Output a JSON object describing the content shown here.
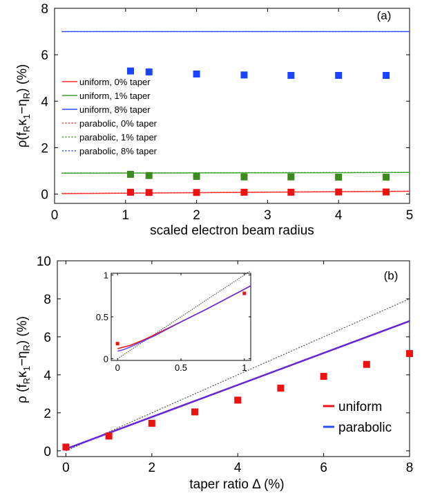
{
  "chart_data": [
    {
      "panel_label": "(a)",
      "type": "scatter",
      "xlabel": "scaled electron beam radius",
      "ylabel_parts": {
        "rho": "ρ",
        "open": "(f",
        "sub_R1": "R",
        "kappa": "κ",
        "sub_1": "1",
        "minus_eta": "−η",
        "sub_R2": "R",
        "close": ")",
        "unit": " (%)"
      },
      "xlim": [
        0,
        5
      ],
      "ylim": [
        -0.4,
        8
      ],
      "xticks": [
        0,
        1,
        2,
        3,
        4,
        5
      ],
      "yticks": [
        0,
        2,
        4,
        6,
        8
      ],
      "grid": false,
      "legend_placement": "left",
      "legend": [
        {
          "label": "uniform, 0% taper",
          "style": "solid",
          "color": "#ff2a2a"
        },
        {
          "label": "uniform, 1% taper",
          "style": "solid",
          "color": "#3aa12a"
        },
        {
          "label": "uniform, 8% taper",
          "style": "solid",
          "color": "#2a4cff"
        },
        {
          "label": "parabolic, 0% taper",
          "style": "dotted",
          "color": "#ff2a2a"
        },
        {
          "label": "parabolic, 1% taper",
          "style": "dotted",
          "color": "#3aa12a"
        },
        {
          "label": "parabolic, 8% taper",
          "style": "dotted",
          "color": "#2a4cff"
        }
      ],
      "lines": [
        {
          "color": "#ff2a2a",
          "style": "solid",
          "x": [
            0.1,
            5
          ],
          "y": [
            0.02,
            0.12
          ]
        },
        {
          "color": "#ff2a2a",
          "style": "dotted",
          "x": [
            0.1,
            5
          ],
          "y": [
            0.03,
            0.13
          ]
        },
        {
          "color": "#3aa12a",
          "style": "solid",
          "x": [
            0.1,
            5
          ],
          "y": [
            0.9,
            0.93
          ]
        },
        {
          "color": "#3aa12a",
          "style": "dotted",
          "x": [
            0.1,
            5
          ],
          "y": [
            0.91,
            0.94
          ]
        },
        {
          "color": "#2a4cff",
          "style": "solid",
          "x": [
            0.1,
            5
          ],
          "y": [
            7.0,
            7.0
          ]
        },
        {
          "color": "#2a4cff",
          "style": "dotted",
          "x": [
            0.1,
            5
          ],
          "y": [
            7.0,
            7.0
          ]
        }
      ],
      "series": [
        {
          "color": "#ee1111",
          "x": [
            1.07,
            1.33,
            2.0,
            2.67,
            3.33,
            4.0,
            4.67
          ],
          "y": [
            0.08,
            0.07,
            0.07,
            0.08,
            0.08,
            0.09,
            0.09
          ]
        },
        {
          "color": "#3a8a1e",
          "x": [
            1.07,
            1.33,
            2.0,
            2.67,
            3.33,
            4.0,
            4.67
          ],
          "y": [
            0.85,
            0.8,
            0.76,
            0.74,
            0.74,
            0.73,
            0.73
          ]
        },
        {
          "color": "#1a44ff",
          "x": [
            1.07,
            1.33,
            2.0,
            2.67,
            3.33,
            4.0,
            4.67
          ],
          "y": [
            5.3,
            5.26,
            5.17,
            5.13,
            5.11,
            5.11,
            5.11
          ]
        }
      ]
    },
    {
      "panel_label": "(b)",
      "type": "scatter",
      "xlabel": "taper ratio Δ (%)",
      "ylabel_parts": {
        "rho": "ρ",
        "open": " (f",
        "sub_R1": "R",
        "kappa": "κ",
        "sub_1": "1",
        "minus_eta": "−η",
        "sub_R2": "R",
        "close": ")",
        "unit": " (%)"
      },
      "xlim": [
        -0.2,
        8
      ],
      "ylim": [
        -0.3,
        10
      ],
      "xticks": [
        0,
        2,
        4,
        6,
        8
      ],
      "yticks": [
        0,
        2,
        4,
        6,
        8,
        10
      ],
      "grid": false,
      "legend_placement": "bottom-right",
      "legend": [
        {
          "label": "uniform",
          "color": "#ee1111"
        },
        {
          "label": "parabolic",
          "color": "#2a4cff"
        }
      ],
      "dashed_line": {
        "color": "#333333",
        "x": [
          0,
          8
        ],
        "y": [
          0.0,
          8.0
        ]
      },
      "uniform_line": {
        "color": "#ee1111",
        "x": [
          0,
          8
        ],
        "y": [
          0.1,
          6.83
        ]
      },
      "parabolic_line": {
        "color": "#4a2aff",
        "x": [
          0,
          8
        ],
        "y": [
          0.1,
          6.83
        ]
      },
      "points": {
        "color": "#ee1111",
        "x": [
          0,
          1,
          2,
          3,
          4,
          5,
          6,
          7,
          8
        ],
        "y": [
          0.2,
          0.78,
          1.45,
          2.05,
          2.67,
          3.3,
          3.92,
          4.55,
          5.12
        ]
      },
      "inset": {
        "xlim": [
          -0.05,
          1.05
        ],
        "ylim": [
          -0.02,
          1.02
        ],
        "xticks": [
          0,
          0.5,
          1
        ],
        "yticks": [
          0,
          0.5,
          1
        ],
        "xtick_labels": [
          "0",
          "0.5",
          "1"
        ],
        "ytick_labels": [
          "0",
          "0.5",
          "1"
        ],
        "dashed": {
          "x": [
            0,
            1.05
          ],
          "y": [
            0.0,
            1.05
          ]
        },
        "uniform": {
          "x": [
            0,
            0.05,
            0.1,
            0.2,
            0.3,
            0.5,
            0.7,
            0.9,
            1.05
          ],
          "y": [
            0.12,
            0.14,
            0.16,
            0.22,
            0.29,
            0.44,
            0.59,
            0.75,
            0.87
          ]
        },
        "parabolic": {
          "x": [
            0,
            0.05,
            0.1,
            0.2,
            0.3,
            0.5,
            0.7,
            0.9,
            1.05
          ],
          "y": [
            0.09,
            0.11,
            0.14,
            0.21,
            0.28,
            0.44,
            0.59,
            0.75,
            0.87
          ]
        },
        "points": {
          "x": [
            0,
            1
          ],
          "y": [
            0.18,
            0.78
          ]
        }
      }
    }
  ]
}
